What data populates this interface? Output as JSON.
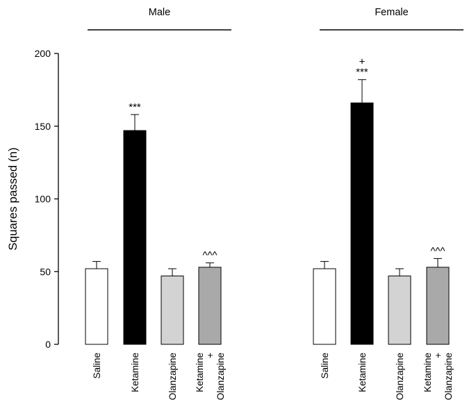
{
  "chart_data": {
    "type": "bar",
    "title": "",
    "xlabel": "",
    "ylabel": "Squares passed (n)",
    "ylim": [
      0,
      200
    ],
    "yticks": [
      0,
      50,
      100,
      150,
      200
    ],
    "grid": false,
    "groups": [
      {
        "name": "Male",
        "bars": [
          {
            "category": [
              "Saline"
            ],
            "value": 52,
            "error": 5,
            "fill": "#ffffff",
            "annotation": []
          },
          {
            "category": [
              "Ketamine"
            ],
            "value": 147,
            "error": 11,
            "fill": "#000000",
            "annotation": [
              "***"
            ]
          },
          {
            "category": [
              "Olanzapine"
            ],
            "value": 47,
            "error": 5,
            "fill": "#d3d3d3",
            "annotation": []
          },
          {
            "category": [
              "Ketamine",
              "+",
              "Olanzapine"
            ],
            "value": 53,
            "error": 3,
            "fill": "#a9a9a9",
            "annotation": [
              "^^^"
            ]
          }
        ]
      },
      {
        "name": "Female",
        "bars": [
          {
            "category": [
              "Saline"
            ],
            "value": 52,
            "error": 5,
            "fill": "#ffffff",
            "annotation": []
          },
          {
            "category": [
              "Ketamine"
            ],
            "value": 166,
            "error": 16,
            "fill": "#000000",
            "annotation": [
              "+",
              "***"
            ]
          },
          {
            "category": [
              "Olanzapine"
            ],
            "value": 47,
            "error": 5,
            "fill": "#d3d3d3",
            "annotation": []
          },
          {
            "category": [
              "Ketamine",
              "+",
              "Olanzapine"
            ],
            "value": 53,
            "error": 6,
            "fill": "#a9a9a9",
            "annotation": [
              "^^^"
            ]
          }
        ]
      }
    ]
  }
}
